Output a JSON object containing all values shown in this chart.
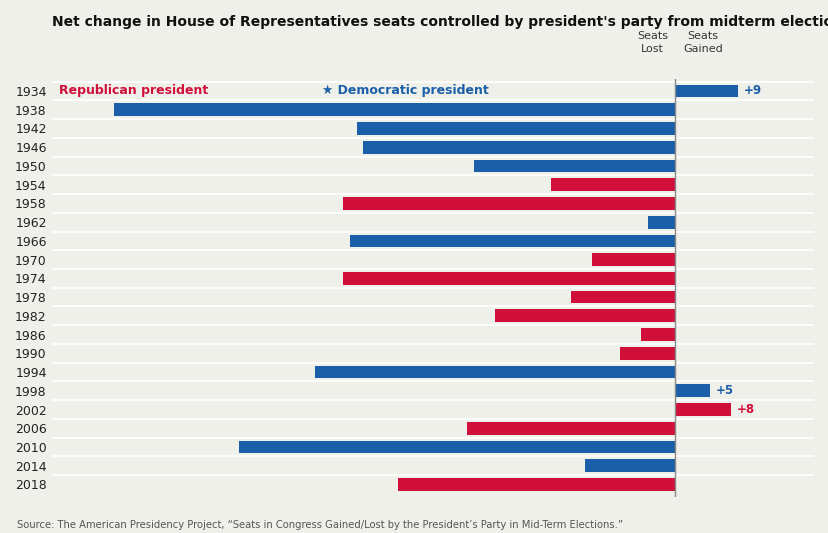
{
  "title": "Net change in House of Representatives seats controlled by president's party from midterm elections",
  "source": "Source: The American Presidency Project, “Seats in Congress Gained/Lost by the President’s Party in Mid-Term Elections.”",
  "years": [
    1934,
    1938,
    1942,
    1946,
    1950,
    1954,
    1958,
    1962,
    1966,
    1970,
    1974,
    1978,
    1982,
    1986,
    1990,
    1994,
    1998,
    2002,
    2006,
    2010,
    2014,
    2018
  ],
  "values": [
    9,
    -81,
    -46,
    -45,
    -29,
    -18,
    -48,
    -4,
    -47,
    -12,
    -48,
    -15,
    -26,
    -5,
    -8,
    -52,
    5,
    8,
    -30,
    -63,
    -13,
    -40
  ],
  "party": [
    "D",
    "D",
    "D",
    "D",
    "D",
    "R",
    "R",
    "D",
    "D",
    "R",
    "R",
    "R",
    "R",
    "R",
    "R",
    "D",
    "D",
    "R",
    "R",
    "D",
    "D",
    "R"
  ],
  "dem_color": "#1a5fa8",
  "rep_color": "#d0103a",
  "bg_color": "#f0f0eb",
  "bar_height": 0.68,
  "xlim_left": -90,
  "xlim_right": 20,
  "label_fontsize": 8.5,
  "title_fontsize": 10.0,
  "legend_fontsize": 9.0,
  "vline_x": 0,
  "zero_line_color": "#888888",
  "ytick_fontsize": 9.0
}
